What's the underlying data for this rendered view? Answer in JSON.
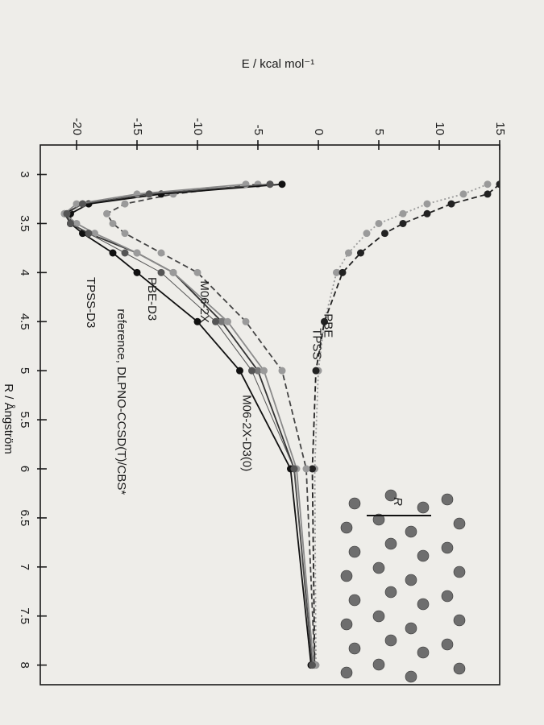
{
  "chart_data": {
    "type": "line",
    "x_label": "R / Ångström",
    "y_label": "E / kcal mol⁻¹",
    "inset_label": "R",
    "x": [
      3.1,
      3.2,
      3.3,
      3.4,
      3.5,
      3.6,
      3.8,
      4.0,
      4.5,
      5.0,
      6.0,
      8.0
    ],
    "xlim": [
      2.7,
      8.2
    ],
    "xticks": [
      3,
      3.5,
      4,
      4.5,
      5,
      5.5,
      6,
      6.5,
      7,
      7.5,
      8
    ],
    "ylim": [
      -23,
      15
    ],
    "yticks": [
      -20,
      -15,
      -10,
      -5,
      0,
      5,
      10,
      15
    ],
    "series": [
      {
        "name": "PBE",
        "color": "#9a9a9a",
        "marker_color": "#9a9a9a",
        "style": "dotted",
        "values": [
          14,
          12,
          9,
          7,
          5,
          4,
          2.5,
          1.5,
          0.5,
          0,
          -0.3,
          -0.2
        ]
      },
      {
        "name": "TPSS",
        "color": "#222222",
        "marker_color": "#222222",
        "style": "dashed",
        "values": [
          15,
          14,
          11,
          9,
          7,
          5.5,
          3.5,
          2,
          0.5,
          -0.2,
          -0.5,
          -0.3
        ]
      },
      {
        "name": "M06-2X",
        "color": "#444444",
        "marker_color": "#9a9a9a",
        "style": "dashed",
        "values": [
          -5,
          -12,
          -16,
          -17.5,
          -17,
          -16,
          -13,
          -10,
          -6,
          -3,
          -1,
          -0.3
        ]
      },
      {
        "name": "PBE-D3",
        "color": "#333333",
        "marker_color": "#777777",
        "style": "solid",
        "values": [
          -4,
          -14,
          -19.5,
          -21,
          -20.5,
          -19,
          -15,
          -12,
          -8,
          -5,
          -2,
          -0.5
        ]
      },
      {
        "name": "TPSS-D3",
        "color": "#111111",
        "marker_color": "#111111",
        "style": "solid",
        "values": [
          -3,
          -13,
          -19,
          -20.5,
          -20.5,
          -19.5,
          -17,
          -15,
          -10,
          -6.5,
          -2.3,
          -0.6
        ]
      },
      {
        "name": "M06-2X-D3(0)",
        "color": "#8a8a8a",
        "marker_color": "#9a9a9a",
        "style": "solid",
        "values": [
          -6,
          -15,
          -20,
          -21,
          -20,
          -18.5,
          -15,
          -12,
          -7.5,
          -4.5,
          -1.8,
          -0.4
        ]
      },
      {
        "name": "reference, DLPNO-CCSD(T)/CBS*",
        "color": "#555555",
        "marker_color": "#555555",
        "style": "thin",
        "values": [
          -4,
          -14,
          -19.5,
          -20.8,
          -20.5,
          -19,
          -16,
          -13,
          -8.5,
          -5.5,
          -2,
          -0.5
        ]
      }
    ]
  }
}
